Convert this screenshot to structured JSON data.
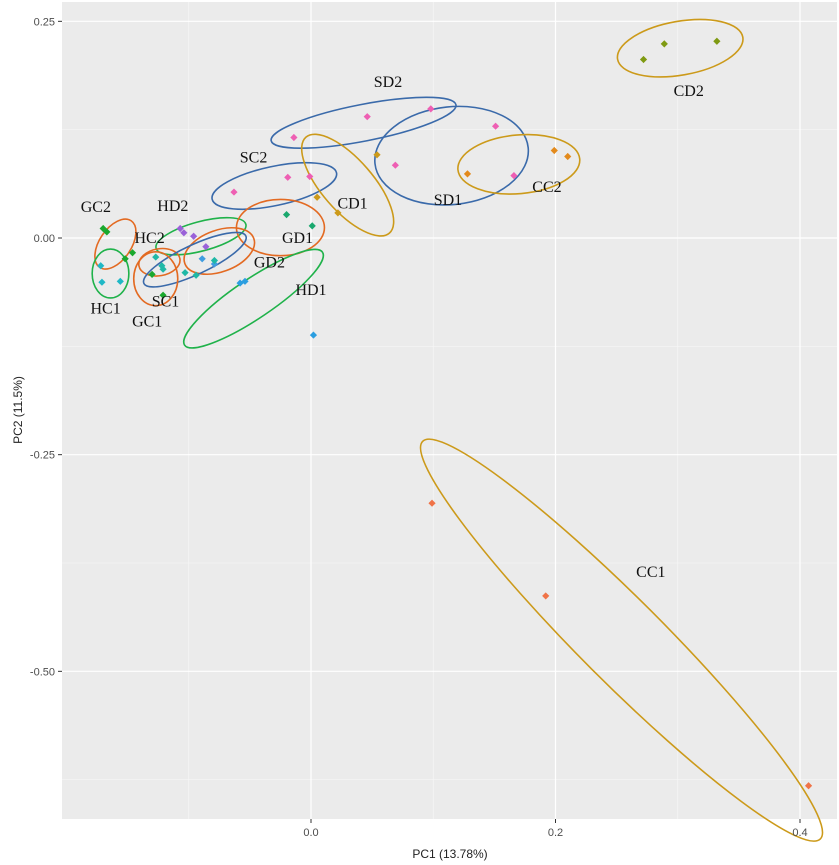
{
  "chart_data": {
    "type": "scatter",
    "title": "",
    "xlabel": "PC1 (13.78%)",
    "ylabel": "PC2 (11.5%)",
    "xlim": [
      -0.1,
      0.42
    ],
    "ylim": [
      -0.67,
      0.27
    ],
    "x_ticks": [
      0.0,
      0.2,
      0.4
    ],
    "x_tick_labels": [
      "0.0",
      "0.2",
      "0.4"
    ],
    "y_ticks": [
      0.25,
      0.0,
      -0.25,
      -0.5
    ],
    "y_tick_labels": [
      "0.25",
      "0.00",
      "-0.25",
      "-0.50"
    ],
    "grid": true,
    "background": "#ebebeb",
    "legend": "none",
    "groups": [
      {
        "label": "CD2",
        "color": "#cc9a1a",
        "point_color": "#7f9a12",
        "points": [
          [
            0.272,
            0.206
          ],
          [
            0.289,
            0.224
          ],
          [
            0.332,
            0.227
          ]
        ],
        "ellipse": {
          "cx": 0.302,
          "cy": 0.219,
          "rx": 0.052,
          "ry": 0.022,
          "angle": -10
        },
        "label_pos": [
          0.309,
          0.164
        ]
      },
      {
        "label": "SD2",
        "color": "#3a6aaa",
        "point_color": "#ee5fb3",
        "points": [
          [
            -0.014,
            0.116
          ],
          [
            0.046,
            0.14
          ],
          [
            0.098,
            0.149
          ]
        ],
        "ellipse": {
          "cx": 0.043,
          "cy": 0.133,
          "rx": 0.077,
          "ry": 0.015,
          "angle": -11
        },
        "label_pos": [
          0.063,
          0.174
        ]
      },
      {
        "label": "SD1",
        "color": "#3a6aaa",
        "point_color": "#ee5fb3",
        "points": [
          [
            0.069,
            0.084
          ],
          [
            0.151,
            0.129
          ],
          [
            0.166,
            0.072
          ]
        ],
        "ellipse": {
          "cx": 0.115,
          "cy": 0.095,
          "rx": 0.063,
          "ry": 0.04,
          "angle": -6
        },
        "label_pos": [
          0.112,
          0.038
        ]
      },
      {
        "label": "CC2",
        "color": "#cc9a1a",
        "point_color": "#e38a1c",
        "points": [
          [
            0.128,
            0.074
          ],
          [
            0.199,
            0.101
          ],
          [
            0.21,
            0.094
          ]
        ],
        "ellipse": {
          "cx": 0.17,
          "cy": 0.085,
          "rx": 0.05,
          "ry": 0.024,
          "angle": -5
        },
        "label_pos": [
          0.193,
          0.053
        ]
      },
      {
        "label": "SC2",
        "color": "#3a6aaa",
        "point_color": "#ee5fb3",
        "points": [
          [
            -0.063,
            0.053
          ],
          [
            -0.019,
            0.07
          ],
          [
            -0.001,
            0.071
          ]
        ],
        "ellipse": {
          "cx": -0.03,
          "cy": 0.06,
          "rx": 0.052,
          "ry": 0.016,
          "angle": -12
        },
        "label_pos": [
          -0.047,
          0.087
        ]
      },
      {
        "label": "CD1",
        "color": "#cc9a1a",
        "point_color": "#cc9a1a",
        "points": [
          [
            0.005,
            0.047
          ],
          [
            0.022,
            0.029
          ],
          [
            0.054,
            0.096
          ]
        ],
        "ellipse": {
          "cx": 0.03,
          "cy": 0.061,
          "rx": 0.052,
          "ry": 0.021,
          "angle": 49
        },
        "label_pos": [
          0.034,
          0.034
        ]
      },
      {
        "label": "GC2",
        "color": "#e36a22",
        "point_color": "#1aa82e",
        "points": [
          [
            -0.17,
            0.011
          ],
          [
            -0.167,
            0.007
          ],
          [
            -0.152,
            -0.024
          ],
          [
            -0.146,
            -0.017
          ]
        ],
        "ellipse": {
          "cx": -0.16,
          "cy": -0.007,
          "rx": 0.023,
          "ry": 0.013,
          "angle": -56
        },
        "label_pos": [
          -0.176,
          0.03
        ]
      },
      {
        "label": "HD2",
        "color": "#1fb24a",
        "point_color": "#9a62d8",
        "points": [
          [
            -0.107,
            0.011
          ],
          [
            -0.104,
            0.006
          ],
          [
            -0.096,
            0.002
          ],
          [
            -0.086,
            -0.01
          ]
        ],
        "ellipse": {
          "cx": -0.09,
          "cy": 0.002,
          "rx": 0.038,
          "ry": 0.012,
          "angle": -15
        },
        "label_pos": [
          -0.113,
          0.031
        ]
      },
      {
        "label": "HC2",
        "color": "#e36a22",
        "point_color": "#1fb8a6",
        "points": [
          [
            -0.127,
            -0.022
          ],
          [
            -0.122,
            -0.032
          ]
        ],
        "ellipse": {
          "cx": -0.124,
          "cy": -0.028,
          "rx": 0.017,
          "ry": 0.011,
          "angle": -10
        },
        "label_pos": [
          -0.132,
          -0.006
        ]
      },
      {
        "label": "GD1",
        "color": "#e36a22",
        "point_color": "#1aa86e",
        "points": [
          [
            -0.02,
            0.027
          ],
          [
            0.001,
            0.014
          ]
        ],
        "ellipse": {
          "cx": -0.025,
          "cy": 0.012,
          "rx": 0.036,
          "ry": 0.023,
          "angle": 0
        },
        "label_pos": [
          -0.011,
          -0.006
        ]
      },
      {
        "label": "GD2",
        "color": "#e36a22",
        "point_color": "#3f9de0",
        "points": [
          [
            -0.089,
            -0.024
          ],
          [
            -0.079,
            -0.03
          ]
        ],
        "ellipse": {
          "cx": -0.075,
          "cy": -0.015,
          "rx": 0.03,
          "ry": 0.017,
          "angle": -20
        },
        "label_pos": [
          -0.034,
          -0.034
        ]
      },
      {
        "label": "HD1",
        "color": "#1fb24a",
        "point_color": "#2b9ee0",
        "points": [
          [
            -0.058,
            -0.052
          ],
          [
            -0.054,
            -0.05
          ],
          [
            0.002,
            -0.112
          ]
        ],
        "ellipse": {
          "cx": -0.047,
          "cy": -0.07,
          "rx": 0.068,
          "ry": 0.016,
          "angle": -34
        },
        "label_pos": [
          0.0,
          -0.066
        ]
      },
      {
        "label": "SC1",
        "color": "#3a6aaa",
        "point_color": "#1fb8a6",
        "points": [
          [
            -0.121,
            -0.036
          ],
          [
            -0.103,
            -0.04
          ],
          [
            -0.094,
            -0.043
          ],
          [
            -0.079,
            -0.026
          ]
        ],
        "ellipse": {
          "cx": -0.095,
          "cy": -0.025,
          "rx": 0.046,
          "ry": 0.012,
          "angle": -25
        },
        "label_pos": [
          -0.119,
          -0.079
        ]
      },
      {
        "label": "HC1",
        "color": "#1fb24a",
        "point_color": "#1fb8c6",
        "points": [
          [
            -0.172,
            -0.032
          ],
          [
            -0.171,
            -0.051
          ],
          [
            -0.156,
            -0.05
          ]
        ],
        "ellipse": {
          "cx": -0.164,
          "cy": -0.041,
          "rx": 0.015,
          "ry": 0.02,
          "angle": 0
        },
        "label_pos": [
          -0.168,
          -0.087
        ]
      },
      {
        "label": "GC1",
        "color": "#e36a22",
        "point_color": "#1aa82e",
        "points": [
          [
            -0.13,
            -0.042
          ],
          [
            -0.121,
            -0.066
          ]
        ],
        "ellipse": {
          "cx": -0.127,
          "cy": -0.047,
          "rx": 0.018,
          "ry": 0.022,
          "angle": 0
        },
        "label_pos": [
          -0.134,
          -0.102
        ]
      },
      {
        "label": "CC1",
        "color": "#cc9a1a",
        "point_color": "#f07347",
        "points": [
          [
            0.099,
            -0.306
          ],
          [
            0.192,
            -0.413
          ],
          [
            0.407,
            -0.632
          ]
        ],
        "ellipse": {
          "cx": 0.254,
          "cy": -0.464,
          "rx": 0.23,
          "ry": 0.034,
          "angle": 45
        },
        "label_pos": [
          0.278,
          -0.391
        ]
      }
    ]
  }
}
